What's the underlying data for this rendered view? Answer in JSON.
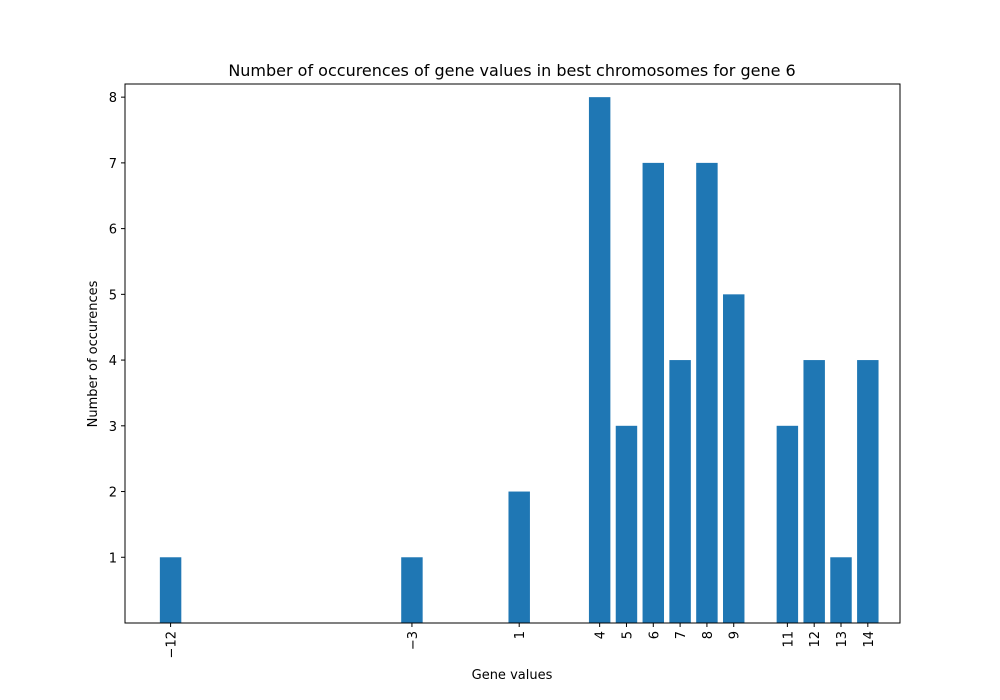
{
  "chart_data": {
    "type": "bar",
    "title": "Number of occurences of gene values in best chromosomes for gene 6",
    "xlabel": "Gene values",
    "ylabel": "Number of occurences",
    "x": [
      -12,
      -3,
      1,
      4,
      5,
      6,
      7,
      8,
      9,
      11,
      12,
      13,
      14
    ],
    "x_tick_labels": [
      "−12",
      "−3",
      "1",
      "4",
      "5",
      "6",
      "7",
      "8",
      "9",
      "11",
      "12",
      "13",
      "14"
    ],
    "values": [
      1,
      1,
      2,
      8,
      3,
      7,
      4,
      7,
      5,
      3,
      4,
      1,
      4
    ],
    "y_ticks": [
      1,
      2,
      3,
      4,
      5,
      6,
      7,
      8
    ],
    "xlim": [
      -13.7,
      15.2
    ],
    "ylim": [
      0,
      8.2
    ],
    "bar_width": 0.8,
    "bar_color": "#1f77b4",
    "x_tick_rotation": "vertical",
    "grid": false,
    "legend": "none"
  }
}
